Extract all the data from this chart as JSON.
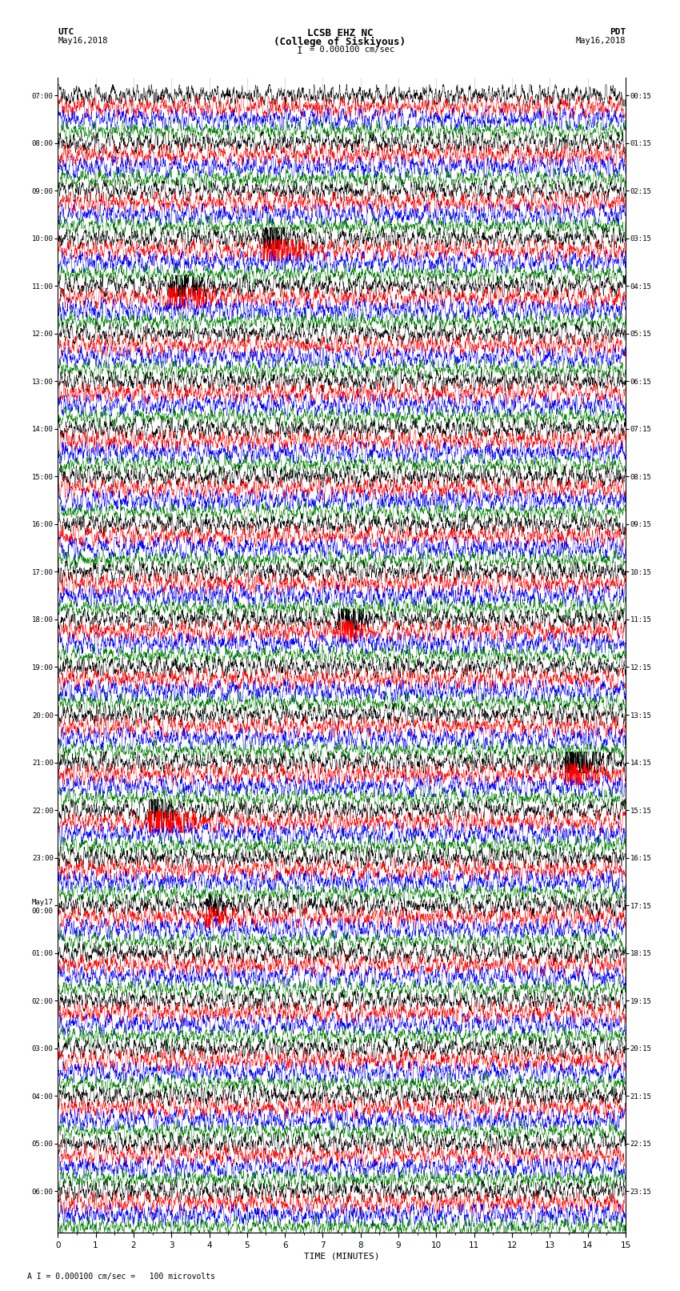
{
  "title_line1": "LCSB EHZ NC",
  "title_line2": "(College of Siskiyous)",
  "scale_text": "I = 0.000100 cm/sec",
  "footer_text": "A I = 0.000100 cm/sec =   100 microvolts",
  "utc_label": "UTC",
  "utc_date": "May16,2018",
  "pdt_label": "PDT",
  "pdt_date": "May16,2018",
  "xlabel": "TIME (MINUTES)",
  "colors": [
    "black",
    "red",
    "blue",
    "green"
  ],
  "x_min": 0,
  "x_max": 15,
  "x_ticks": [
    0,
    1,
    2,
    3,
    4,
    5,
    6,
    7,
    8,
    9,
    10,
    11,
    12,
    13,
    14,
    15
  ],
  "background_color": "white",
  "fig_width": 8.5,
  "fig_height": 16.13,
  "traces_per_group": 4,
  "n_groups": 24,
  "left_labels": [
    "07:00",
    "08:00",
    "09:00",
    "10:00",
    "11:00",
    "12:00",
    "13:00",
    "14:00",
    "15:00",
    "16:00",
    "17:00",
    "18:00",
    "19:00",
    "20:00",
    "21:00",
    "22:00",
    "23:00",
    "May17\n00:00",
    "01:00",
    "02:00",
    "03:00",
    "04:00",
    "05:00",
    "06:00"
  ],
  "right_labels": [
    "00:15",
    "01:15",
    "02:15",
    "03:15",
    "04:15",
    "05:15",
    "06:15",
    "07:15",
    "08:15",
    "09:15",
    "10:15",
    "11:15",
    "12:15",
    "13:15",
    "14:15",
    "15:15",
    "16:15",
    "17:15",
    "18:15",
    "19:15",
    "20:15",
    "21:15",
    "22:15",
    "23:15"
  ],
  "gridline_positions": [
    1,
    2,
    3,
    4,
    5,
    6,
    7,
    8,
    9,
    10,
    11,
    12,
    13,
    14
  ]
}
